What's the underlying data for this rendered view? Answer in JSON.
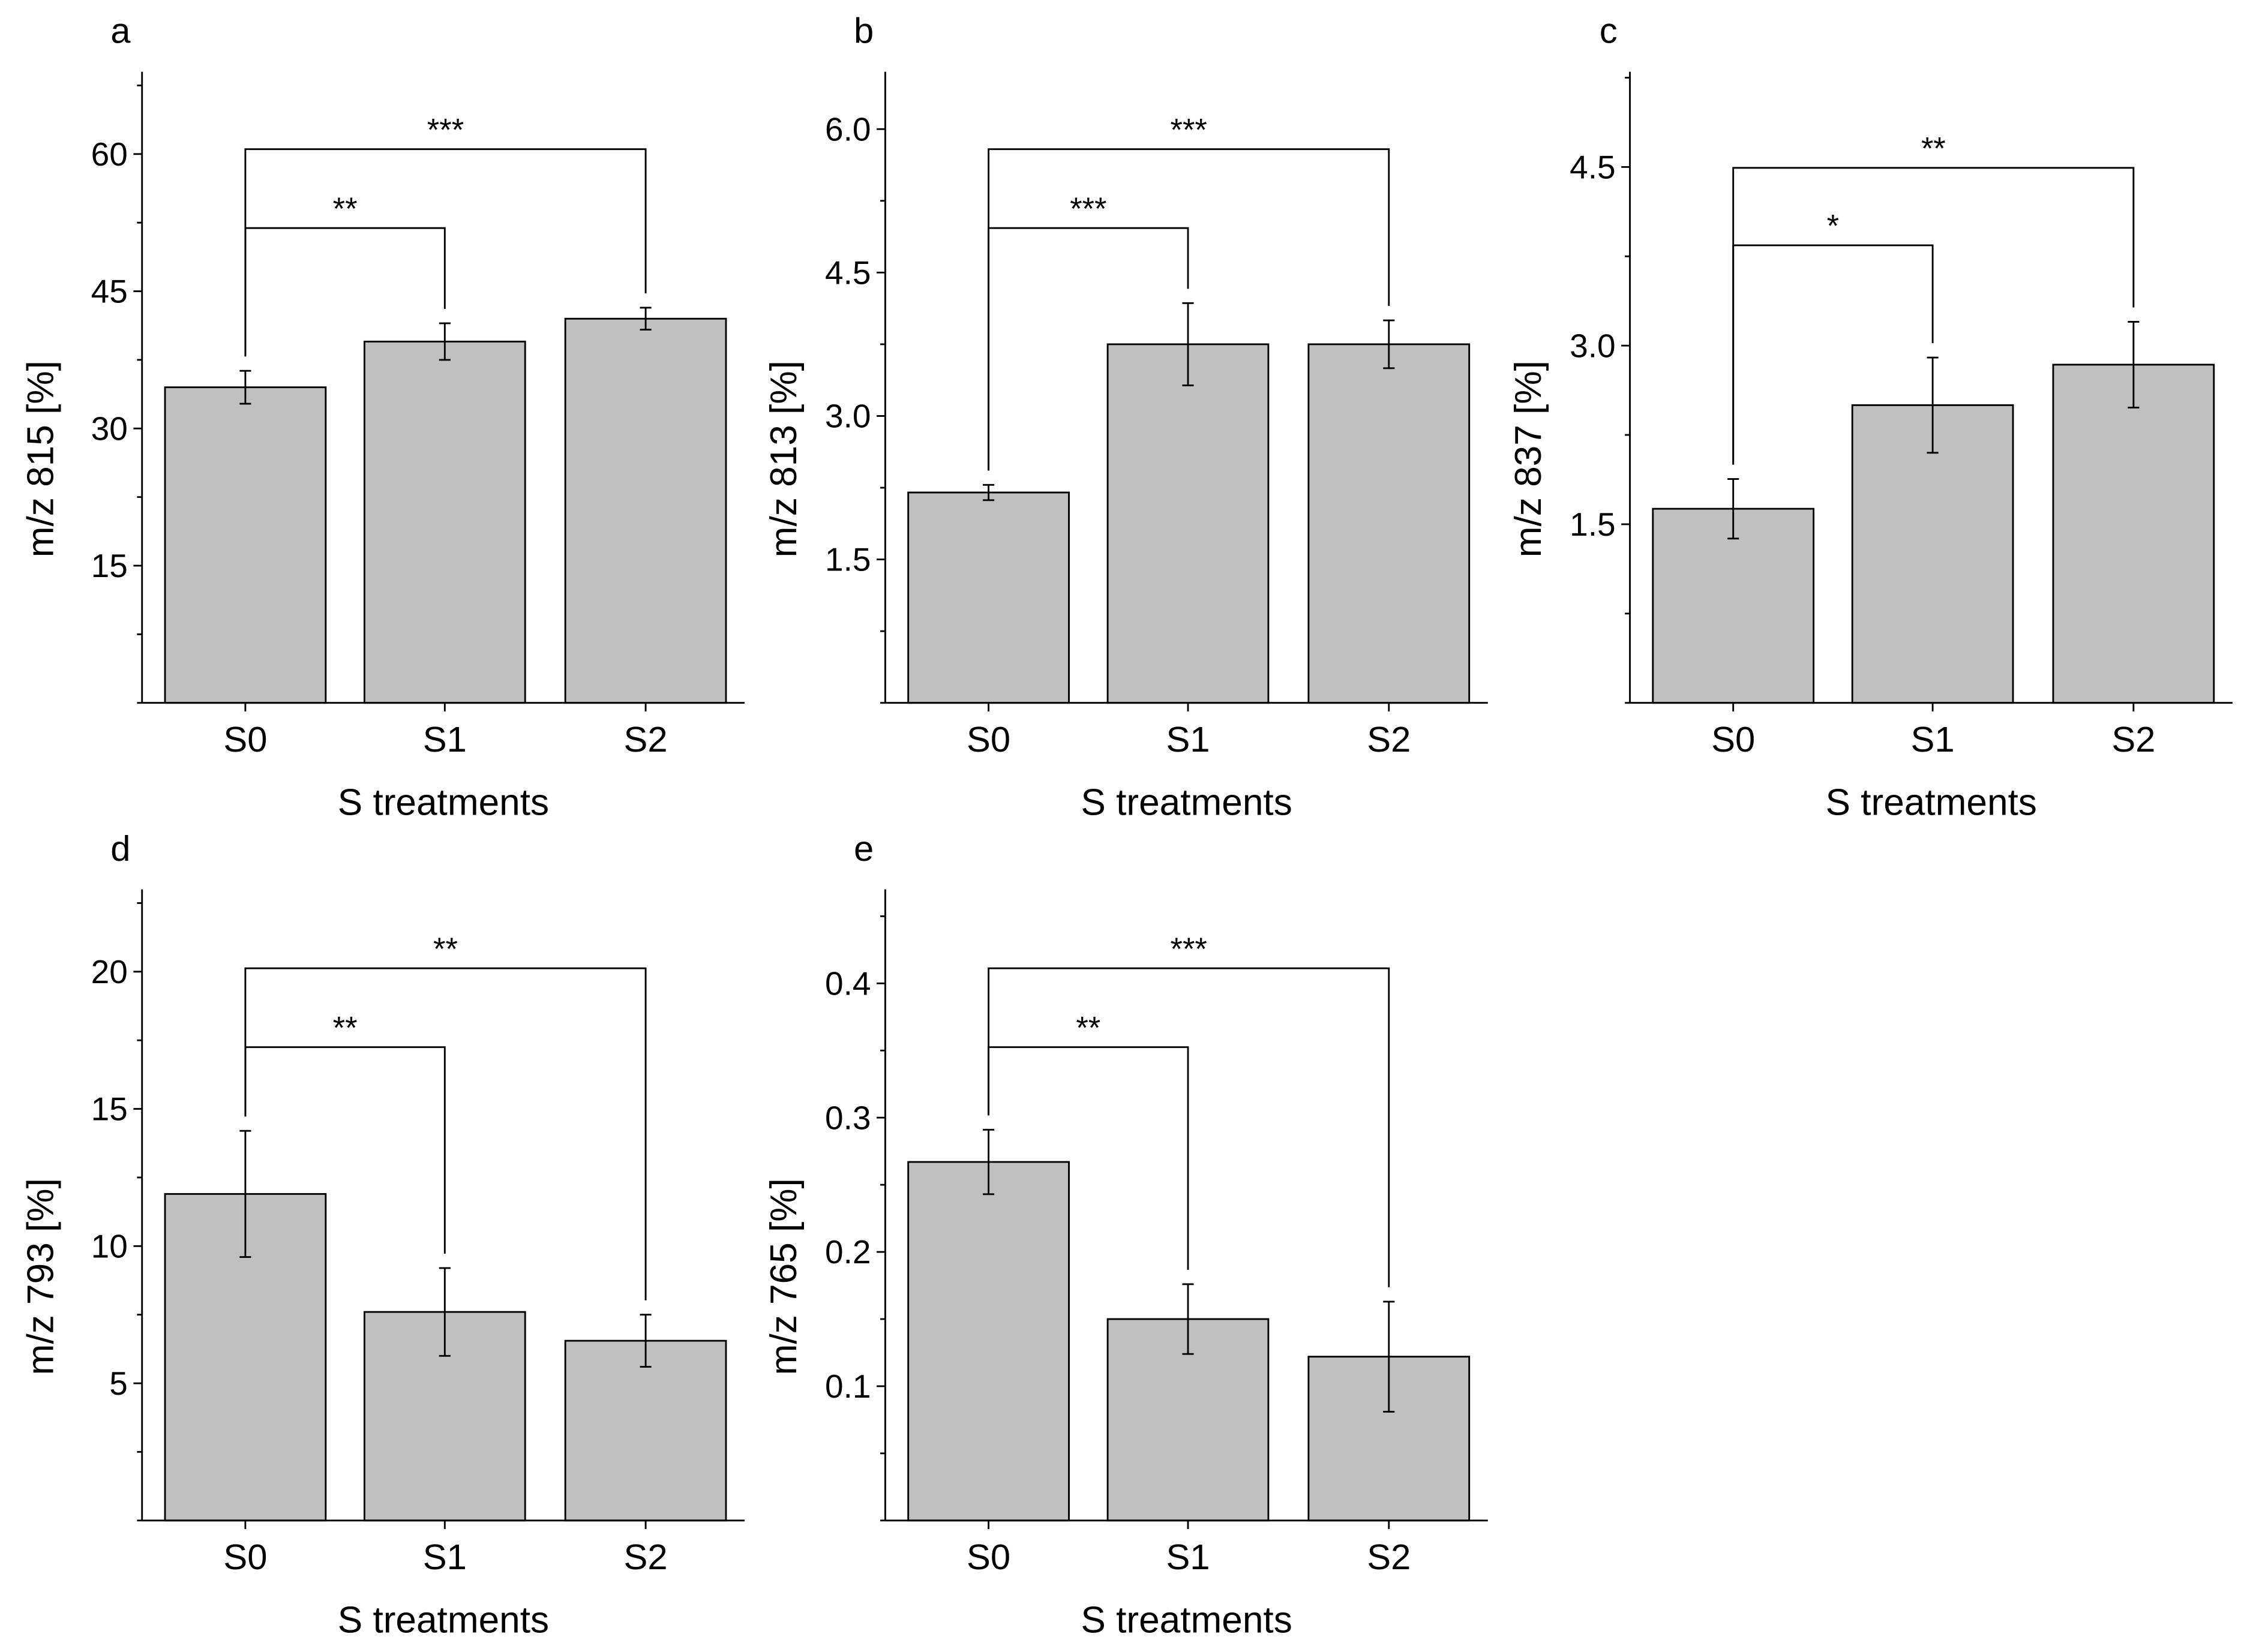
{
  "chart_data": [
    {
      "type": "bar",
      "panel_label": "a",
      "categories": [
        "S0",
        "S1",
        "S2"
      ],
      "values": [
        34.5,
        39.5,
        42.0
      ],
      "errors": [
        1.8,
        2.0,
        1.2
      ],
      "xlabel": "S treatments",
      "ylabel": "m/z 815 [%]",
      "ylim": [
        0,
        69
      ],
      "yticks": [
        15,
        30,
        45,
        60
      ],
      "ytick_labels": [
        "15",
        "30",
        "45",
        "60"
      ],
      "bar_color": "#c0c0c0",
      "significance": [
        {
          "from": "S0",
          "to": "S1",
          "label": "**"
        },
        {
          "from": "S0",
          "to": "S2",
          "label": "***"
        }
      ]
    },
    {
      "type": "bar",
      "panel_label": "b",
      "categories": [
        "S0",
        "S1",
        "S2"
      ],
      "values": [
        2.2,
        3.75,
        3.75
      ],
      "errors": [
        0.08,
        0.43,
        0.25
      ],
      "xlabel": "S treatments",
      "ylabel": "m/z 813 [%]",
      "ylim": [
        0,
        6.6
      ],
      "yticks": [
        1.5,
        3.0,
        4.5,
        6.0
      ],
      "ytick_labels": [
        "1.5",
        "3.0",
        "4.5",
        "6.0"
      ],
      "bar_color": "#c0c0c0",
      "significance": [
        {
          "from": "S0",
          "to": "S1",
          "label": "***"
        },
        {
          "from": "S0",
          "to": "S2",
          "label": "***"
        }
      ]
    },
    {
      "type": "bar",
      "panel_label": "c",
      "categories": [
        "S0",
        "S1",
        "S2"
      ],
      "values": [
        1.63,
        2.5,
        2.84
      ],
      "errors": [
        0.25,
        0.4,
        0.36
      ],
      "xlabel": "S treatments",
      "ylabel": "m/z 837 [%]",
      "ylim": [
        0,
        5.3
      ],
      "yticks": [
        1.5,
        3.0,
        4.5
      ],
      "ytick_labels": [
        "1.5",
        "3.0",
        "4.5"
      ],
      "bar_color": "#c0c0c0",
      "significance": [
        {
          "from": "S0",
          "to": "S1",
          "label": "*"
        },
        {
          "from": "S0",
          "to": "S2",
          "label": "**"
        }
      ]
    },
    {
      "type": "bar",
      "panel_label": "d",
      "categories": [
        "S0",
        "S1",
        "S2"
      ],
      "values": [
        11.9,
        7.6,
        6.55
      ],
      "errors": [
        2.3,
        1.6,
        0.95
      ],
      "xlabel": "S treatments",
      "ylabel": "m/z 793 [%]",
      "ylim": [
        0,
        23
      ],
      "yticks": [
        5,
        10,
        15,
        20
      ],
      "ytick_labels": [
        "5",
        "10",
        "15",
        "20"
      ],
      "bar_color": "#c0c0c0",
      "significance": [
        {
          "from": "S0",
          "to": "S1",
          "label": "**"
        },
        {
          "from": "S0",
          "to": "S2",
          "label": "**"
        }
      ]
    },
    {
      "type": "bar",
      "panel_label": "e",
      "categories": [
        "S0",
        "S1",
        "S2"
      ],
      "values": [
        0.267,
        0.15,
        0.122
      ],
      "errors": [
        0.024,
        0.026,
        0.041
      ],
      "xlabel": "S treatments",
      "ylabel": "m/z 765 [%]",
      "ylim": [
        0,
        0.47
      ],
      "yticks": [
        0.1,
        0.2,
        0.3,
        0.4
      ],
      "ytick_labels": [
        "0.1",
        "0.2",
        "0.3",
        "0.4"
      ],
      "bar_color": "#c0c0c0",
      "significance": [
        {
          "from": "S0",
          "to": "S1",
          "label": "**"
        },
        {
          "from": "S0",
          "to": "S2",
          "label": "***"
        }
      ]
    }
  ]
}
